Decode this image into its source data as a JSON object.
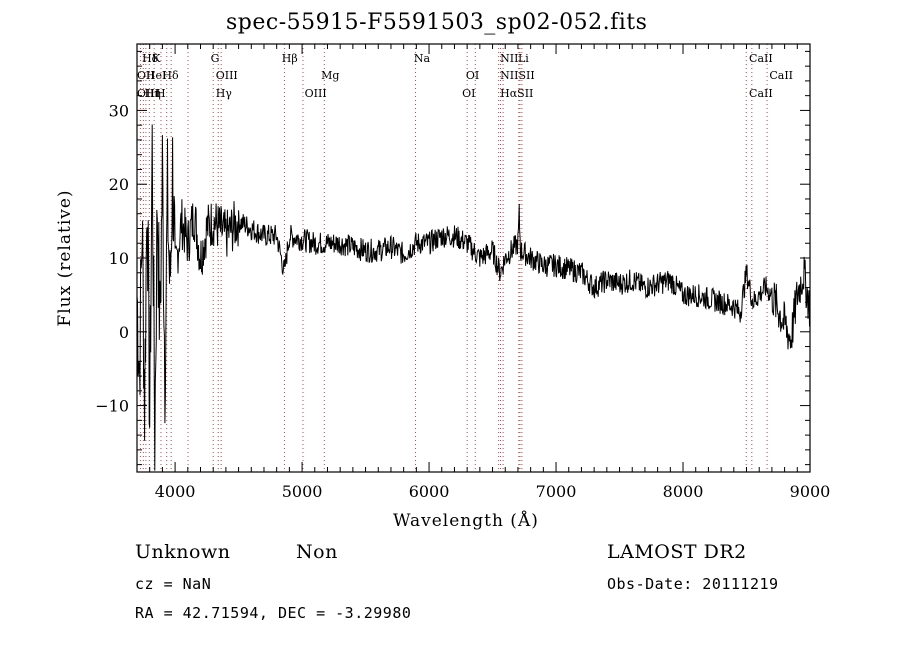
{
  "chart_data": {
    "type": "line",
    "title": "spec-55915-F5591503_sp02-052.fits",
    "xlabel": "Wavelength (Å)",
    "ylabel": "Flux (relative)",
    "xlim": [
      3700,
      9000
    ],
    "ylim": [
      -19,
      39
    ],
    "x_ticks": [
      4000,
      5000,
      6000,
      7000,
      8000,
      9000
    ],
    "y_ticks": [
      -10,
      0,
      10,
      20,
      30
    ],
    "grid": false,
    "series": [
      {
        "x": [
          3700,
          3720,
          3740,
          3760,
          3780,
          3800,
          3820,
          3840,
          3860,
          3880,
          3900,
          3920,
          3940,
          3960,
          3980,
          4000,
          4050,
          4100,
          4150,
          4200,
          4250,
          4300,
          4350,
          4400,
          4500,
          4600,
          4700,
          4800,
          4860,
          4900,
          5000,
          5100,
          5200,
          5300,
          5400,
          5500,
          5600,
          5700,
          5800,
          5900,
          6000,
          6100,
          6200,
          6300,
          6400,
          6500,
          6560,
          6600,
          6650,
          6700,
          6710,
          6720,
          6800,
          6900,
          7000,
          7100,
          7200,
          7300,
          7400,
          7500,
          7600,
          7700,
          7800,
          7900,
          8000,
          8100,
          8200,
          8300,
          8400,
          8450,
          8500,
          8550,
          8600,
          8650,
          8700,
          8750,
          8800,
          8850,
          8900,
          8950,
          9000
        ],
        "y": [
          5,
          -5,
          15,
          -10,
          20,
          -12,
          25,
          -14,
          18,
          0,
          22,
          -5,
          18,
          5,
          22,
          8,
          15,
          12,
          16,
          10,
          14,
          15,
          14,
          13,
          15,
          14,
          13,
          13,
          8,
          13,
          12.5,
          12,
          12,
          12,
          11.5,
          11,
          11,
          11.5,
          10.5,
          12,
          12,
          13,
          13,
          12,
          10,
          11,
          8,
          10,
          11,
          12,
          16,
          11,
          10,
          9,
          9,
          8.5,
          8,
          6,
          7,
          6.5,
          7,
          6,
          6.5,
          7,
          5,
          5,
          4.5,
          4,
          3.5,
          2.5,
          8,
          4,
          5,
          6,
          5,
          3,
          1,
          -1,
          5,
          8,
          3
        ]
      }
    ],
    "annotations": [
      {
        "label": "Hδ",
        "x": 3740
      },
      {
        "label": "K",
        "x": 3820
      },
      {
        "label": "OII",
        "x": 3700
      },
      {
        "label": "HeI",
        "x": 3770
      },
      {
        "label": "Hδ",
        "x": 3900
      },
      {
        "label": "OIII",
        "x": 3700
      },
      {
        "label": "Hη",
        "x": 3760
      },
      {
        "label": "H",
        "x": 3850
      },
      {
        "label": "G",
        "x": 4280
      },
      {
        "label": "OIII",
        "x": 4320
      },
      {
        "label": "Hγ",
        "x": 4320
      },
      {
        "label": "Hβ",
        "x": 4840
      },
      {
        "label": "OIII",
        "x": 5020
      },
      {
        "label": "Mg",
        "x": 5150
      },
      {
        "label": "Na",
        "x": 5880
      },
      {
        "label": "OI",
        "x": 6290
      },
      {
        "label": "OI",
        "x": 6260
      },
      {
        "label": "NII",
        "x": 6560
      },
      {
        "label": "Li",
        "x": 6700
      },
      {
        "label": "NIISII",
        "x": 6560
      },
      {
        "label": "HαSII",
        "x": 6560
      },
      {
        "label": "CaII",
        "x": 8520
      },
      {
        "label": "CaII",
        "x": 8680
      },
      {
        "label": "CaII",
        "x": 8520
      }
    ],
    "line_markers": [
      3727,
      3750,
      3770,
      3797,
      3835,
      3889,
      3934,
      3969,
      4102,
      4300,
      4340,
      4363,
      4861,
      5007,
      5175,
      5893,
      6300,
      6364,
      6548,
      6563,
      6583,
      6707,
      6716,
      6731,
      8498,
      8542,
      8662
    ]
  },
  "footer": {
    "left_line1_a": "Unknown",
    "left_line1_b": "Non",
    "left_line2": "cz = NaN",
    "left_line3": "RA =  42.71594, DEC =  -3.29980",
    "right_line1": "LAMOST DR2",
    "right_line2": "Obs-Date: 20111219"
  }
}
